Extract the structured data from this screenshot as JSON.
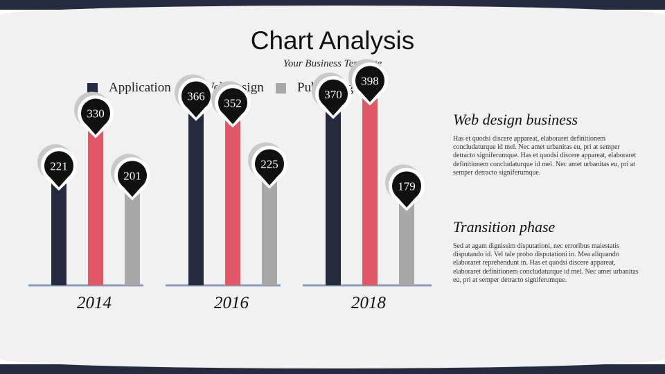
{
  "title": "Chart Analysis",
  "subtitle": "Your Business Template",
  "colors": {
    "background": "#f1f1f1",
    "band": "#262a3e",
    "application": "#262a3e",
    "web_design": "#e05765",
    "publishing": "#a8a8a8",
    "baseline": "#8a9bbd"
  },
  "chart_data": {
    "type": "bar",
    "categories": [
      "2014",
      "2016",
      "2018"
    ],
    "series": [
      {
        "name": "Application",
        "values": [
          221,
          366,
          370
        ]
      },
      {
        "name": "Web design",
        "values": [
          330,
          352,
          398
        ]
      },
      {
        "name": "Publishing",
        "values": [
          201,
          225,
          179
        ]
      }
    ],
    "legend": "top",
    "grid": false
  },
  "sections": [
    {
      "heading": "Web design business",
      "body": "Has et quodsi discere appareat, elaboraret definitionem concludaturque id mel. Nec amet urbanitas eu, pri at semper detracto signiferumque. Has et quodsi discere appareat, elaboraret definitionem concludaturque id mel. Nec amet urbanitas eu, pri at semper detracto signiferumque."
    },
    {
      "heading": "Transition phase",
      "body": "Sed at agam dignissim disputationi, nec erroribus maiestatis disputando id. Vel tale probo disputationi in. Mea aliquando elaboraret reprehendunt in. Has et quodsi discere appareat, elaboraret definitionem concludaturque id mel. Nec amet urbanitas eu, pri at semper detracto signiferumque."
    }
  ]
}
